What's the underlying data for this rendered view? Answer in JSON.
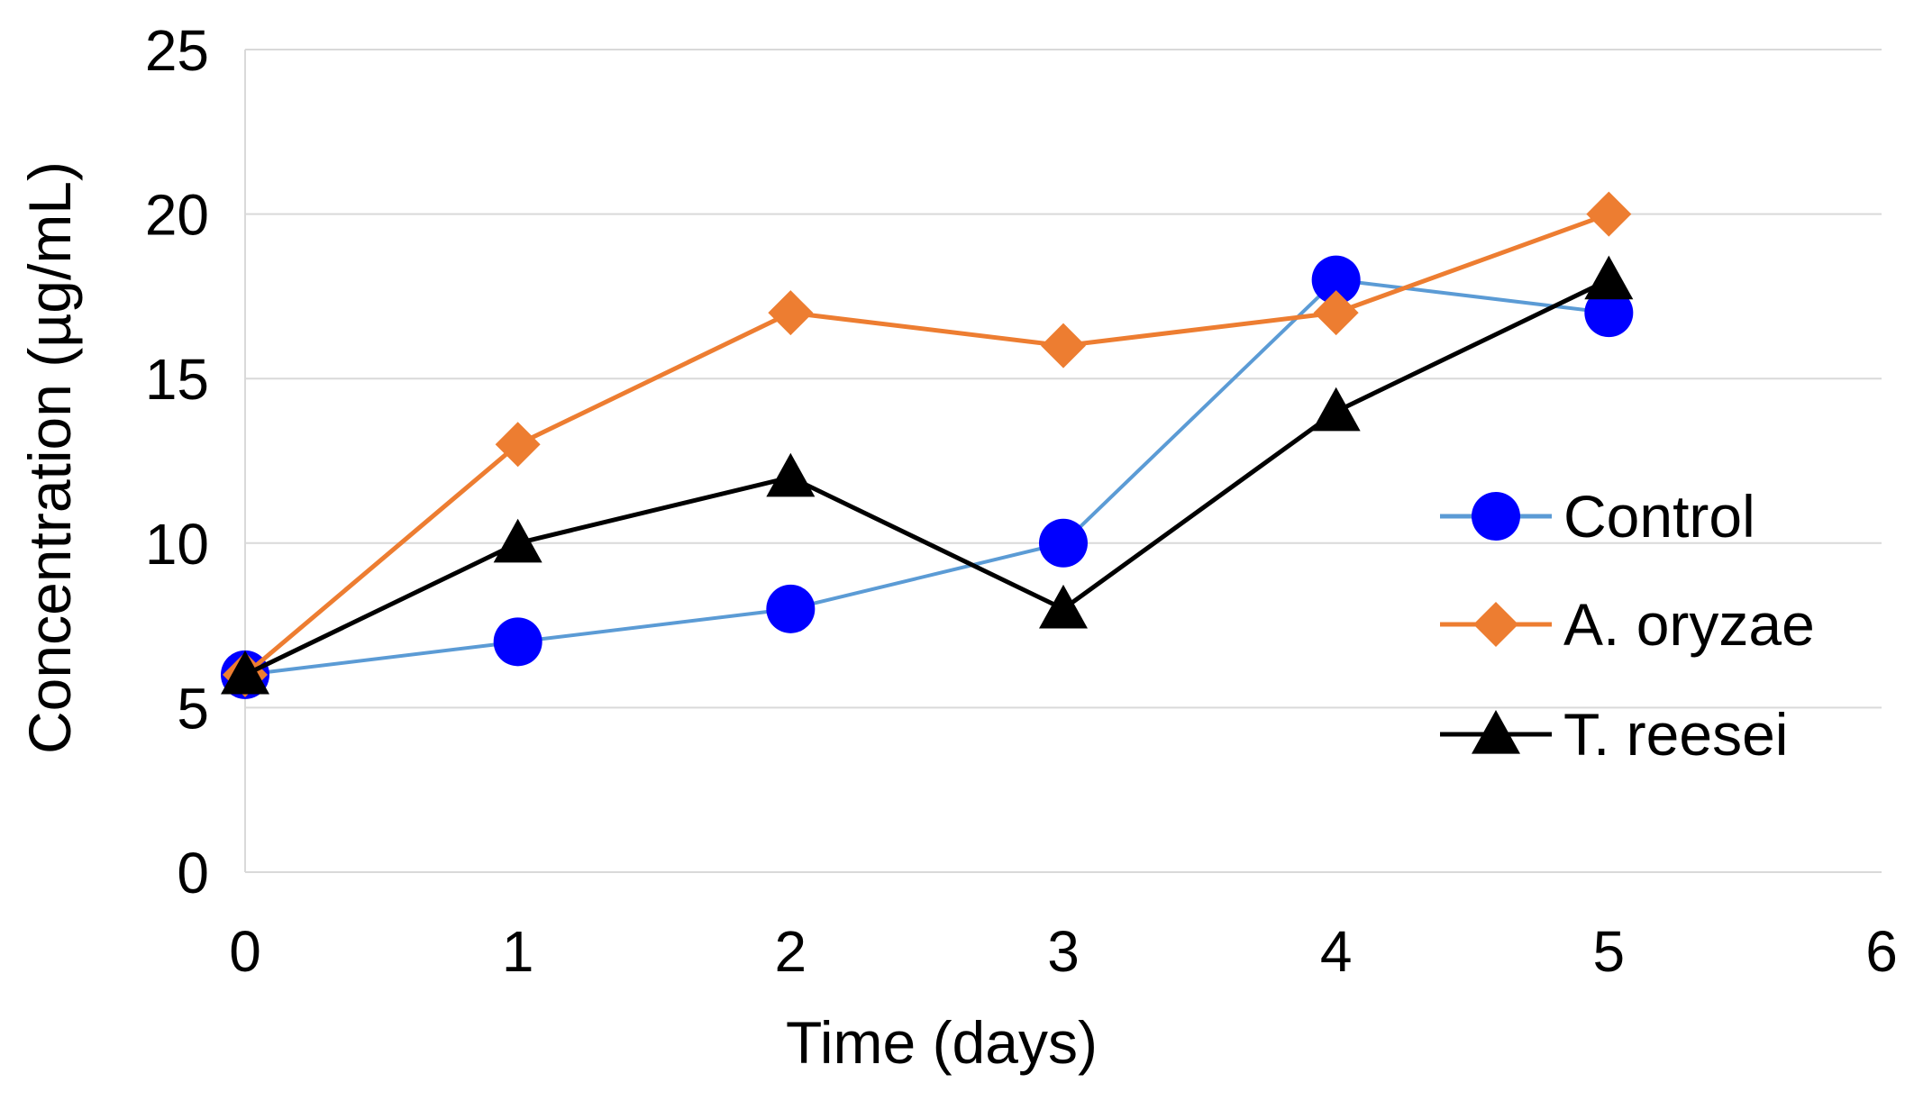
{
  "chart_data": {
    "type": "line",
    "title": "",
    "xlabel": "Time (days)",
    "ylabel": "Concentration (µg/mL)",
    "xlim": [
      0,
      6
    ],
    "ylim": [
      0,
      25
    ],
    "xticks": [
      0,
      1,
      2,
      3,
      4,
      5,
      6
    ],
    "yticks": [
      0,
      5,
      10,
      15,
      20,
      25
    ],
    "grid": true,
    "legend_position": "right",
    "x": [
      0,
      1,
      2,
      3,
      4,
      5
    ],
    "series": [
      {
        "name": "Control",
        "marker": "circle",
        "color": "#0000ff",
        "line_color": "#5b9bd5",
        "values": [
          6,
          7,
          8,
          10,
          18,
          17
        ]
      },
      {
        "name": "A. oryzae",
        "marker": "diamond",
        "color": "#ed7d31",
        "line_color": "#ed7d31",
        "values": [
          6,
          13,
          17,
          16,
          17,
          20
        ]
      },
      {
        "name": "T. reesei",
        "marker": "triangle",
        "color": "#000000",
        "line_color": "#000000",
        "values": [
          6,
          10,
          12,
          8,
          14,
          18
        ]
      }
    ]
  }
}
